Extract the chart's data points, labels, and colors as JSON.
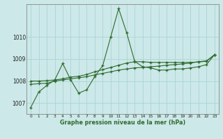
{
  "xlabel": "Graphe pression niveau de la mer (hPa)",
  "background_color": "#cce8e8",
  "grid_color": "#aad4d4",
  "line_color": "#2d6a2d",
  "x_ticks": [
    0,
    1,
    2,
    3,
    4,
    5,
    6,
    7,
    8,
    9,
    10,
    11,
    12,
    13,
    14,
    15,
    16,
    17,
    18,
    19,
    20,
    21,
    22,
    23
  ],
  "ylim": [
    1006.5,
    1011.5
  ],
  "yticks": [
    1007,
    1008,
    1009,
    1010
  ],
  "lines": [
    {
      "x": [
        0,
        1,
        2,
        3,
        4,
        5,
        6,
        7,
        8,
        9,
        10,
        11,
        12,
        13,
        14,
        15,
        16,
        17,
        18,
        19,
        20,
        21,
        22,
        23
      ],
      "y": [
        1006.8,
        1007.5,
        1007.8,
        1008.05,
        1008.8,
        1008.05,
        1007.45,
        1007.6,
        1008.2,
        1008.7,
        1010.0,
        1011.3,
        1010.2,
        1008.9,
        1008.65,
        1008.6,
        1008.5,
        1008.5,
        1008.55,
        1008.55,
        1008.6,
        1008.65,
        1008.75,
        1009.2
      ]
    },
    {
      "x": [
        0,
        1,
        2,
        3,
        4,
        5,
        6,
        7,
        8,
        9,
        10,
        11,
        12,
        13,
        14,
        15,
        16,
        17,
        18,
        19,
        20,
        21,
        22,
        23
      ],
      "y": [
        1007.85,
        1007.88,
        1007.9,
        1008.0,
        1008.05,
        1008.1,
        1008.15,
        1008.2,
        1008.28,
        1008.35,
        1008.42,
        1008.5,
        1008.55,
        1008.6,
        1008.62,
        1008.65,
        1008.68,
        1008.72,
        1008.75,
        1008.78,
        1008.82,
        1008.88,
        1008.92,
        1009.2
      ]
    },
    {
      "x": [
        0,
        1,
        2,
        3,
        4,
        5,
        6,
        7,
        8,
        9,
        10,
        11,
        12,
        13,
        14,
        15,
        16,
        17,
        18,
        19,
        20,
        21,
        22,
        23
      ],
      "y": [
        1008.0,
        1008.0,
        1008.02,
        1008.05,
        1008.1,
        1008.18,
        1008.22,
        1008.3,
        1008.42,
        1008.52,
        1008.62,
        1008.72,
        1008.82,
        1008.88,
        1008.88,
        1008.85,
        1008.85,
        1008.85,
        1008.85,
        1008.85,
        1008.85,
        1008.87,
        1008.9,
        1009.2
      ]
    }
  ]
}
